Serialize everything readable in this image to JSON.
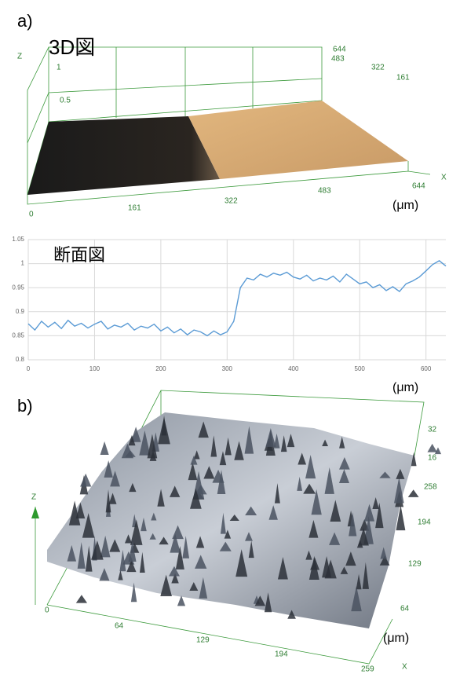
{
  "labels": {
    "a": "a)",
    "b": "b)"
  },
  "surface_a": {
    "title": "3D図",
    "z_axis": "Z",
    "z_ticks": [
      "1",
      "0.5"
    ],
    "y_ticks": [
      "644",
      "483",
      "322",
      "161"
    ],
    "x_ticks": [
      "0",
      "161",
      "322",
      "483",
      "644"
    ],
    "x_axis": "X",
    "unit": "(μm)"
  },
  "chart_data": {
    "type": "line",
    "title": "断面図",
    "x_unit": "(μm)",
    "color": "#5b9bd5",
    "grid": true,
    "x": [
      0,
      10,
      20,
      30,
      40,
      50,
      60,
      70,
      80,
      90,
      100,
      110,
      120,
      130,
      140,
      150,
      160,
      170,
      180,
      190,
      200,
      210,
      220,
      230,
      240,
      250,
      260,
      270,
      280,
      290,
      300,
      310,
      320,
      330,
      340,
      350,
      360,
      370,
      380,
      390,
      400,
      410,
      420,
      430,
      440,
      450,
      460,
      470,
      480,
      490,
      500,
      510,
      520,
      530,
      540,
      550,
      560,
      570,
      580,
      590,
      600,
      610,
      620,
      630
    ],
    "values": [
      0.875,
      0.862,
      0.88,
      0.868,
      0.878,
      0.865,
      0.882,
      0.87,
      0.876,
      0.866,
      0.874,
      0.88,
      0.864,
      0.872,
      0.868,
      0.876,
      0.862,
      0.87,
      0.866,
      0.874,
      0.86,
      0.868,
      0.856,
      0.864,
      0.852,
      0.862,
      0.858,
      0.85,
      0.86,
      0.852,
      0.858,
      0.88,
      0.95,
      0.97,
      0.966,
      0.978,
      0.972,
      0.98,
      0.976,
      0.982,
      0.972,
      0.968,
      0.976,
      0.964,
      0.97,
      0.966,
      0.974,
      0.962,
      0.978,
      0.968,
      0.958,
      0.962,
      0.95,
      0.956,
      0.944,
      0.952,
      0.942,
      0.958,
      0.964,
      0.972,
      0.985,
      0.998,
      1.006,
      0.995
    ],
    "xlim": [
      0,
      630
    ],
    "ylim": [
      0.8,
      1.05
    ],
    "xticks": [
      0,
      100,
      200,
      300,
      400,
      500,
      600
    ],
    "yticks": [
      0.8,
      0.85,
      0.9,
      0.95,
      1,
      1.05
    ]
  },
  "surface_b": {
    "z_axis": "Z",
    "y_ticks": [
      "32",
      "16",
      "258",
      "194",
      "129",
      "64"
    ],
    "x_ticks": [
      "0",
      "64",
      "129",
      "194",
      "259"
    ],
    "x_axis": "X",
    "unit": "(μm)"
  }
}
